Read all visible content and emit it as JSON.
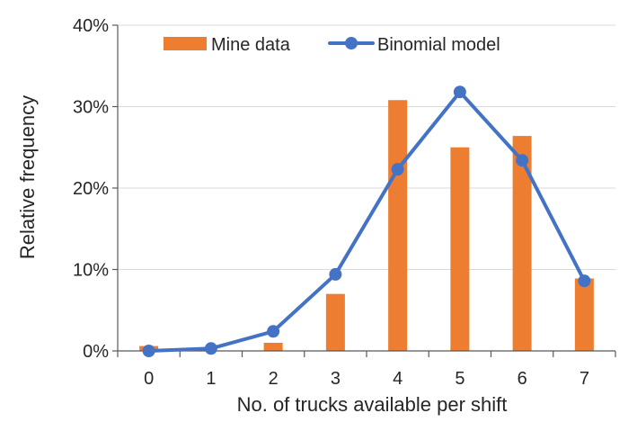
{
  "chart_data": {
    "type": "bar",
    "title": "",
    "xlabel": "No. of trucks available per shift",
    "ylabel": "Relative frequency",
    "categories": [
      "0",
      "1",
      "2",
      "3",
      "4",
      "5",
      "6",
      "7"
    ],
    "ylim": [
      0,
      40
    ],
    "yticks": [
      0,
      10,
      20,
      30,
      40
    ],
    "ytick_labels": [
      "0%",
      "10%",
      "20%",
      "30%",
      "40%"
    ],
    "grid": true,
    "legend_position": "top",
    "series": [
      {
        "name": "Mine data",
        "type": "bar",
        "color": "#ED7D31",
        "values": [
          0.6,
          0.0,
          1.0,
          7.0,
          30.8,
          25.0,
          26.4,
          8.9
        ]
      },
      {
        "name": "Binomial model",
        "type": "line",
        "color": "#4472C4",
        "values": [
          0.0,
          0.3,
          2.4,
          9.4,
          22.3,
          31.8,
          23.4,
          8.6
        ]
      }
    ]
  }
}
